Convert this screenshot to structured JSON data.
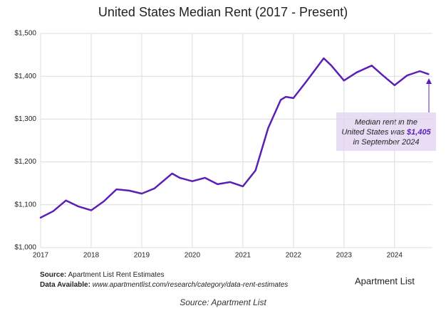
{
  "chart_data": {
    "type": "line",
    "title": "United States Median Rent (2017 - Present)",
    "x": [
      2017.0,
      2017.25,
      2017.5,
      2017.75,
      2018.0,
      2018.25,
      2018.5,
      2018.75,
      2019.0,
      2019.25,
      2019.5,
      2019.6,
      2019.75,
      2020.0,
      2020.25,
      2020.5,
      2020.75,
      2021.0,
      2021.25,
      2021.5,
      2021.75,
      2021.85,
      2022.0,
      2022.25,
      2022.6,
      2022.75,
      2023.0,
      2023.25,
      2023.55,
      2023.75,
      2024.0,
      2024.25,
      2024.5,
      2024.67
    ],
    "series": [
      {
        "name": "Median rent",
        "color": "#5b1fb5",
        "values": [
          1070,
          1085,
          1110,
          1096,
          1087,
          1108,
          1136,
          1133,
          1126,
          1138,
          1163,
          1173,
          1163,
          1155,
          1163,
          1148,
          1153,
          1143,
          1180,
          1279,
          1345,
          1352,
          1349,
          1387,
          1442,
          1425,
          1390,
          1409,
          1425,
          1404,
          1379,
          1402,
          1412,
          1405
        ]
      }
    ],
    "xlim": [
      2017,
      2024.75
    ],
    "xticks": [
      2017,
      2018,
      2019,
      2020,
      2021,
      2022,
      2023,
      2024
    ],
    "ylim": [
      1000,
      1500
    ],
    "yticks": [
      {
        "value": 1000,
        "label": "$1,000"
      },
      {
        "value": 1100,
        "label": "$1,100"
      },
      {
        "value": 1200,
        "label": "$1,200"
      },
      {
        "value": 1300,
        "label": "$1,300"
      },
      {
        "value": 1400,
        "label": "$1,400"
      },
      {
        "value": 1500,
        "label": "$1,500"
      }
    ],
    "grid": true,
    "annotation": {
      "line1": "Median rent in the",
      "line2": "United States was",
      "highlight": "$1,405",
      "line3": "in September 2024",
      "color": "#e9ddf6"
    }
  },
  "footer": {
    "source_label": "Source:",
    "source": "Apartment List Rent Estimates",
    "data_label": "Data Available:",
    "data_url": "www.apartmentlist.com/research/category/data-rent-estimates",
    "logo": "Apartment List"
  },
  "caption": "Source: Apartment List"
}
